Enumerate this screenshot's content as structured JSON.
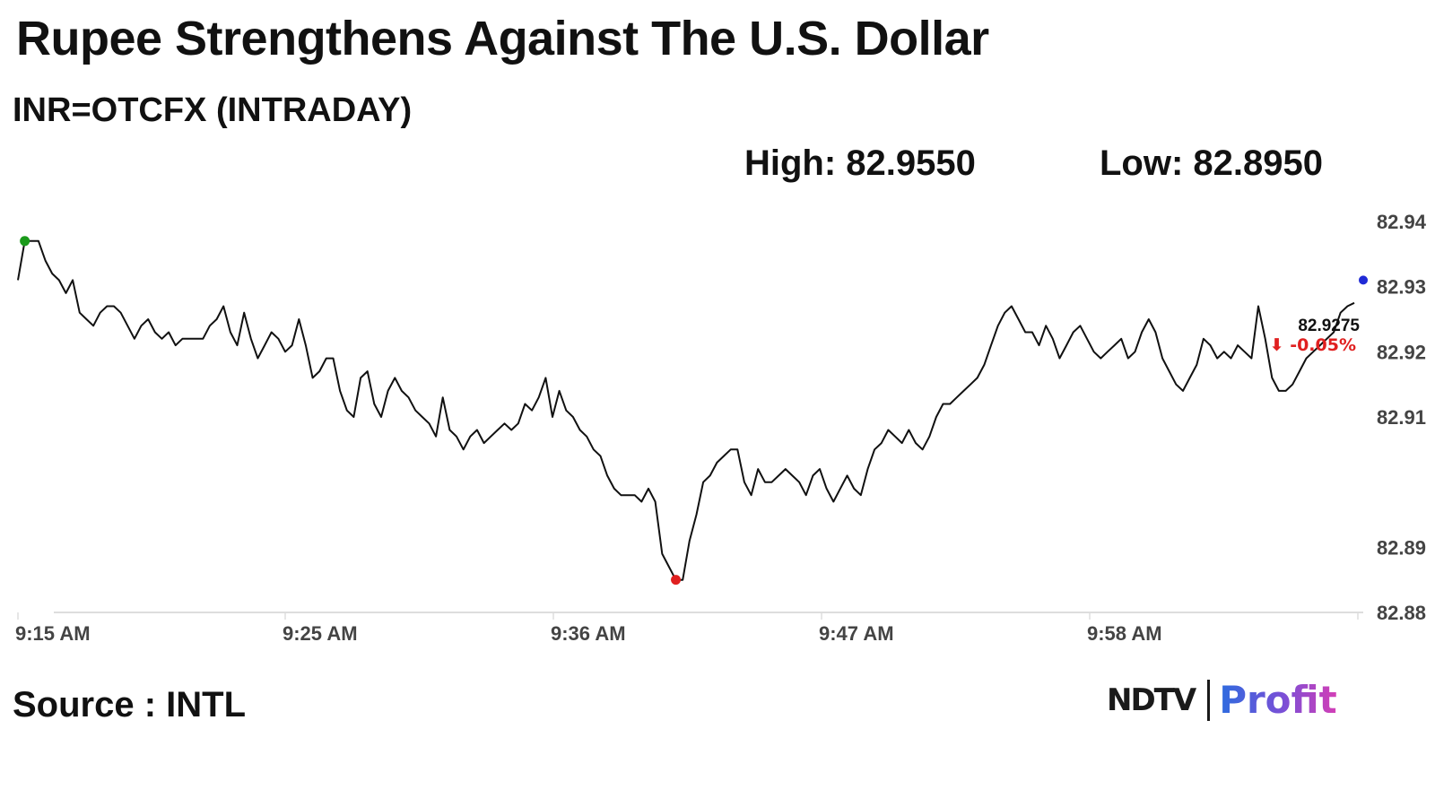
{
  "header": {
    "title": "Rupee Strengthens Against The U.S. Dollar",
    "subtitle": "INR=OTCFX (INTRADAY)",
    "high_label": "High: 82.9550",
    "low_label": "Low: 82.8950"
  },
  "footer": {
    "source": "Source : INTL",
    "logo_left": "NDTV",
    "logo_right": "Profit"
  },
  "colors": {
    "line": "#111111",
    "high_marker": "#1a9a1a",
    "low_marker": "#e02020",
    "last_marker": "#1f2ad6",
    "change_negative": "#e02020",
    "axis": "#dddddd",
    "tick_text": "#444444"
  },
  "chart_data": {
    "type": "line",
    "title": "Rupee Strengthens Against The U.S. Dollar",
    "subtitle": "INR=OTCFX (INTRADAY)",
    "xlabel": "",
    "ylabel": "",
    "xlim": [
      "9:15 AM",
      "10:06 AM"
    ],
    "ylim": [
      82.88,
      82.94
    ],
    "x_ticks": [
      "9:15 AM",
      "9:25 AM",
      "9:36 AM",
      "9:47 AM",
      "9:58 AM"
    ],
    "y_ticks": [
      "82.88",
      "82.89",
      "82.91",
      "82.92",
      "82.93",
      "82.94"
    ],
    "grid": false,
    "legend": "none",
    "last_value_label": "82.9275",
    "change_label": "⬇ -0.05%",
    "series": [
      {
        "values": [
          82.931,
          82.937,
          82.937,
          82.937,
          82.934,
          82.932,
          82.931,
          82.929,
          82.931,
          82.926,
          82.925,
          82.924,
          82.926,
          82.927,
          82.927,
          82.926,
          82.924,
          82.922,
          82.924,
          82.925,
          82.923,
          82.922,
          82.923,
          82.921,
          82.922,
          82.922,
          82.922,
          82.922,
          82.924,
          82.925,
          82.927,
          82.923,
          82.921,
          82.926,
          82.922,
          82.919,
          82.921,
          82.923,
          82.922,
          82.92,
          82.921,
          82.925,
          82.921,
          82.916,
          82.917,
          82.919,
          82.919,
          82.914,
          82.911,
          82.91,
          82.916,
          82.917,
          82.912,
          82.91,
          82.914,
          82.916,
          82.914,
          82.913,
          82.911,
          82.91,
          82.909,
          82.907,
          82.913,
          82.908,
          82.907,
          82.905,
          82.907,
          82.908,
          82.906,
          82.907,
          82.908,
          82.909,
          82.908,
          82.909,
          82.912,
          82.911,
          82.913,
          82.916,
          82.91,
          82.914,
          82.911,
          82.91,
          82.908,
          82.907,
          82.905,
          82.904,
          82.901,
          82.899,
          82.898,
          82.898,
          82.898,
          82.897,
          82.899,
          82.897,
          82.889,
          82.887,
          82.885,
          82.885,
          82.891,
          82.895,
          82.9,
          82.901,
          82.903,
          82.904,
          82.905,
          82.905,
          82.9,
          82.898,
          82.902,
          82.9,
          82.9,
          82.901,
          82.902,
          82.901,
          82.9,
          82.898,
          82.901,
          82.902,
          82.899,
          82.897,
          82.899,
          82.901,
          82.899,
          82.898,
          82.902,
          82.905,
          82.906,
          82.908,
          82.907,
          82.906,
          82.908,
          82.906,
          82.905,
          82.907,
          82.91,
          82.912,
          82.912,
          82.913,
          82.914,
          82.915,
          82.916,
          82.918,
          82.921,
          82.924,
          82.926,
          82.927,
          82.925,
          82.923,
          82.923,
          82.921,
          82.924,
          82.922,
          82.919,
          82.921,
          82.923,
          82.924,
          82.922,
          82.92,
          82.919,
          82.92,
          82.921,
          82.922,
          82.919,
          82.92,
          82.923,
          82.925,
          82.923,
          82.919,
          82.917,
          82.915,
          82.914,
          82.916,
          82.918,
          82.922,
          82.921,
          82.919,
          82.92,
          82.919,
          82.921,
          82.92,
          82.919,
          82.927,
          82.922,
          82.916,
          82.914,
          82.914,
          82.915,
          82.917,
          82.919,
          82.92,
          82.921,
          82.922,
          82.923,
          82.926,
          82.927,
          82.9275
        ]
      }
    ]
  }
}
